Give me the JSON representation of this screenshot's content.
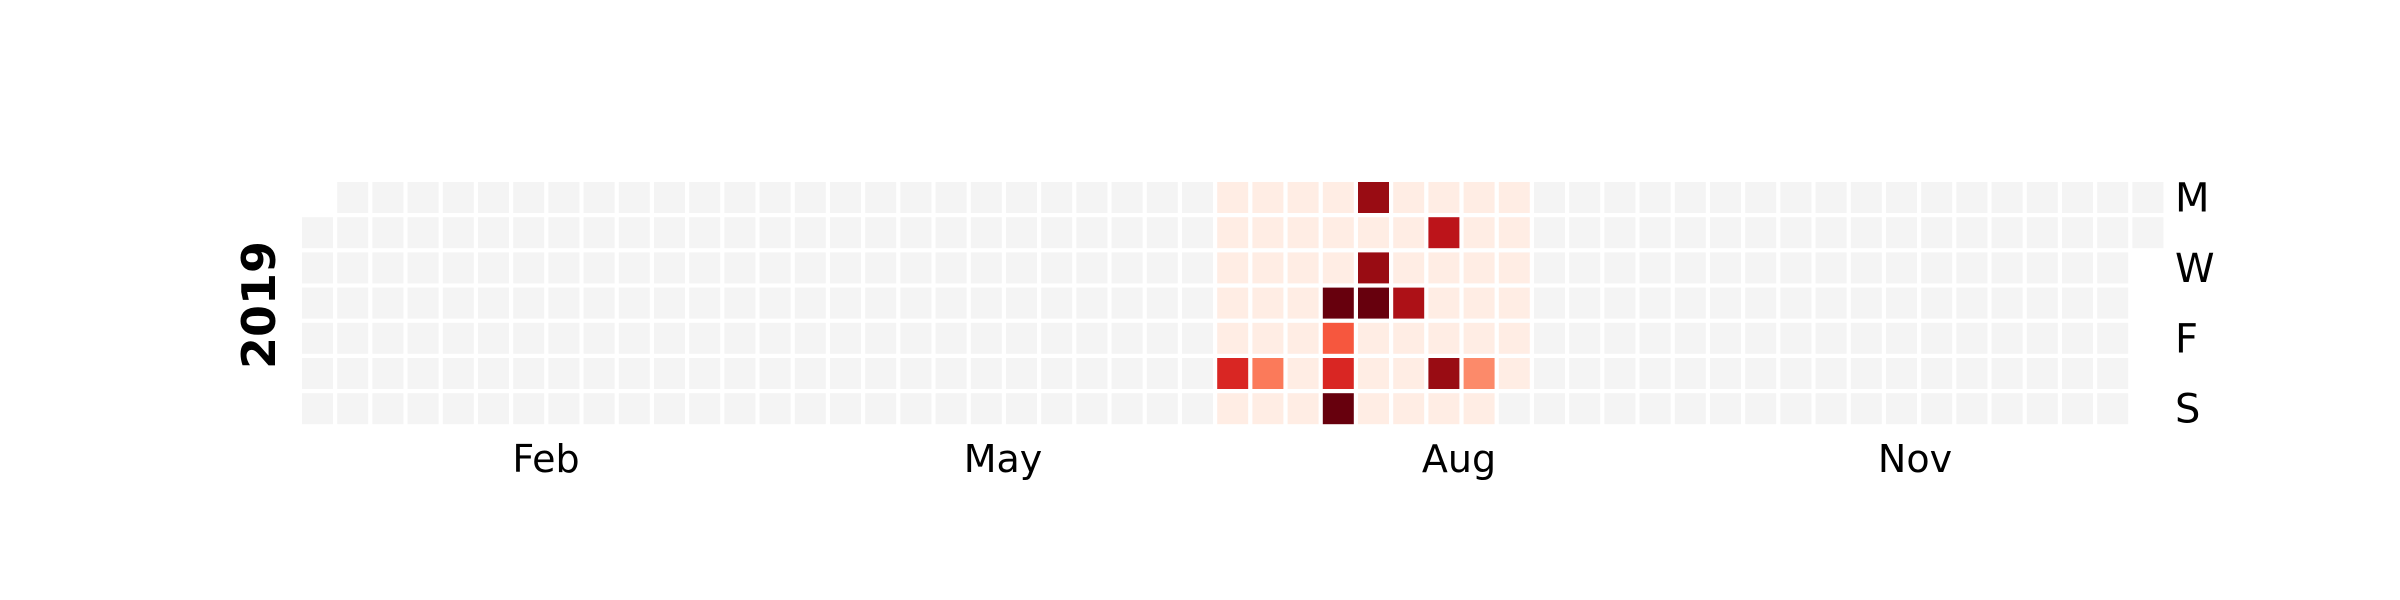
{
  "chart_data": {
    "type": "heatmap",
    "subtype": "calendar",
    "year": "2019",
    "colormap": "Reds",
    "empty_color": "#f4f4f4",
    "cell_border_color": "#ffffff",
    "grid": false,
    "day_labels": [
      "M",
      "W",
      "F",
      "S"
    ],
    "month_labels": [
      "Feb",
      "May",
      "Aug",
      "Nov"
    ],
    "active_range": {
      "start": "2019-07-01",
      "end": "2019-08-31",
      "base_value": 0.05
    },
    "values": [
      {
        "date": "2019-07-06",
        "value": 0.7
      },
      {
        "date": "2019-07-13",
        "value": 0.45
      },
      {
        "date": "2019-07-26",
        "value": 0.55
      },
      {
        "date": "2019-07-27",
        "value": 0.7
      },
      {
        "date": "2019-07-28",
        "value": 1.0
      },
      {
        "date": "2019-07-25",
        "value": 1.0
      },
      {
        "date": "2019-07-29",
        "value": 0.9
      },
      {
        "date": "2019-07-31",
        "value": 0.9
      },
      {
        "date": "2019-08-01",
        "value": 1.0
      },
      {
        "date": "2019-08-08",
        "value": 0.85
      },
      {
        "date": "2019-08-13",
        "value": 0.8
      },
      {
        "date": "2019-08-17",
        "value": 0.9
      },
      {
        "date": "2019-08-24",
        "value": 0.4
      }
    ]
  }
}
